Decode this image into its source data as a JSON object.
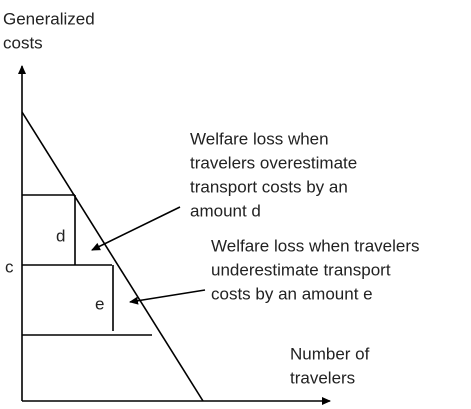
{
  "y_axis_label": [
    "Generalized",
    "costs"
  ],
  "x_axis_label": [
    "Number of",
    "travelers"
  ],
  "price_label": "c",
  "area_labels": [
    "d",
    "e"
  ],
  "annotations": [
    {
      "lines": [
        "Welfare loss when",
        "travelers overestimate",
        "transport costs by an",
        "amount d"
      ]
    },
    {
      "lines": [
        "Welfare loss when travelers",
        "underestimate transport",
        "costs by an amount e"
      ]
    }
  ]
}
